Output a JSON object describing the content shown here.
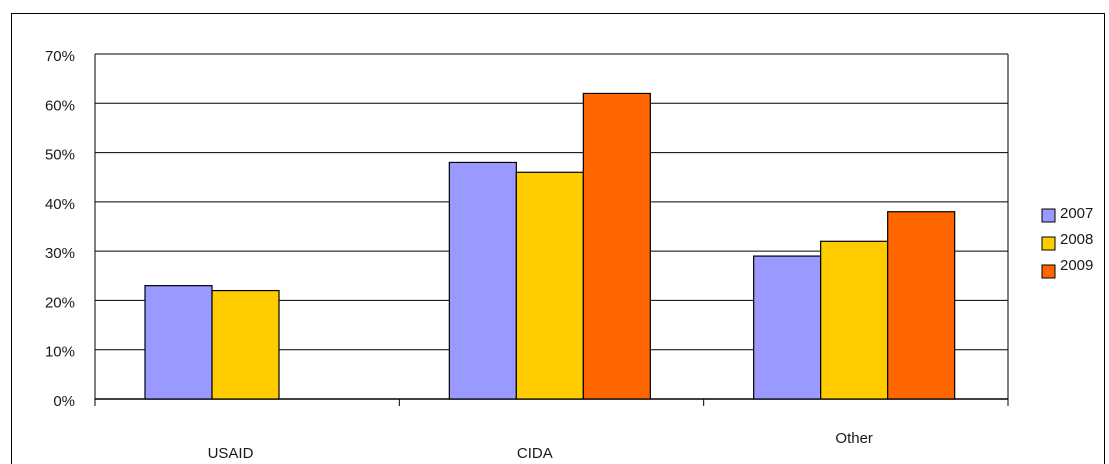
{
  "chart_data": {
    "type": "bar",
    "title": "",
    "xlabel": "",
    "ylabel": "",
    "categories": [
      "USAID",
      "CIDA",
      "Other"
    ],
    "series": [
      {
        "name": "2007",
        "values": [
          23,
          48,
          29
        ],
        "color": "#9999ff"
      },
      {
        "name": "2008",
        "values": [
          22,
          46,
          32
        ],
        "color": "#ffcc00"
      },
      {
        "name": "2009",
        "values": [
          null,
          62,
          38
        ],
        "color": "#ff6600"
      }
    ],
    "ylim": [
      0,
      70
    ],
    "yticks": [
      "0%",
      "10%",
      "20%",
      "30%",
      "40%",
      "50%",
      "60%",
      "70%"
    ],
    "grid": true,
    "legend_position": "right",
    "legend_labels": [
      "2007",
      "2008",
      "2009"
    ]
  }
}
